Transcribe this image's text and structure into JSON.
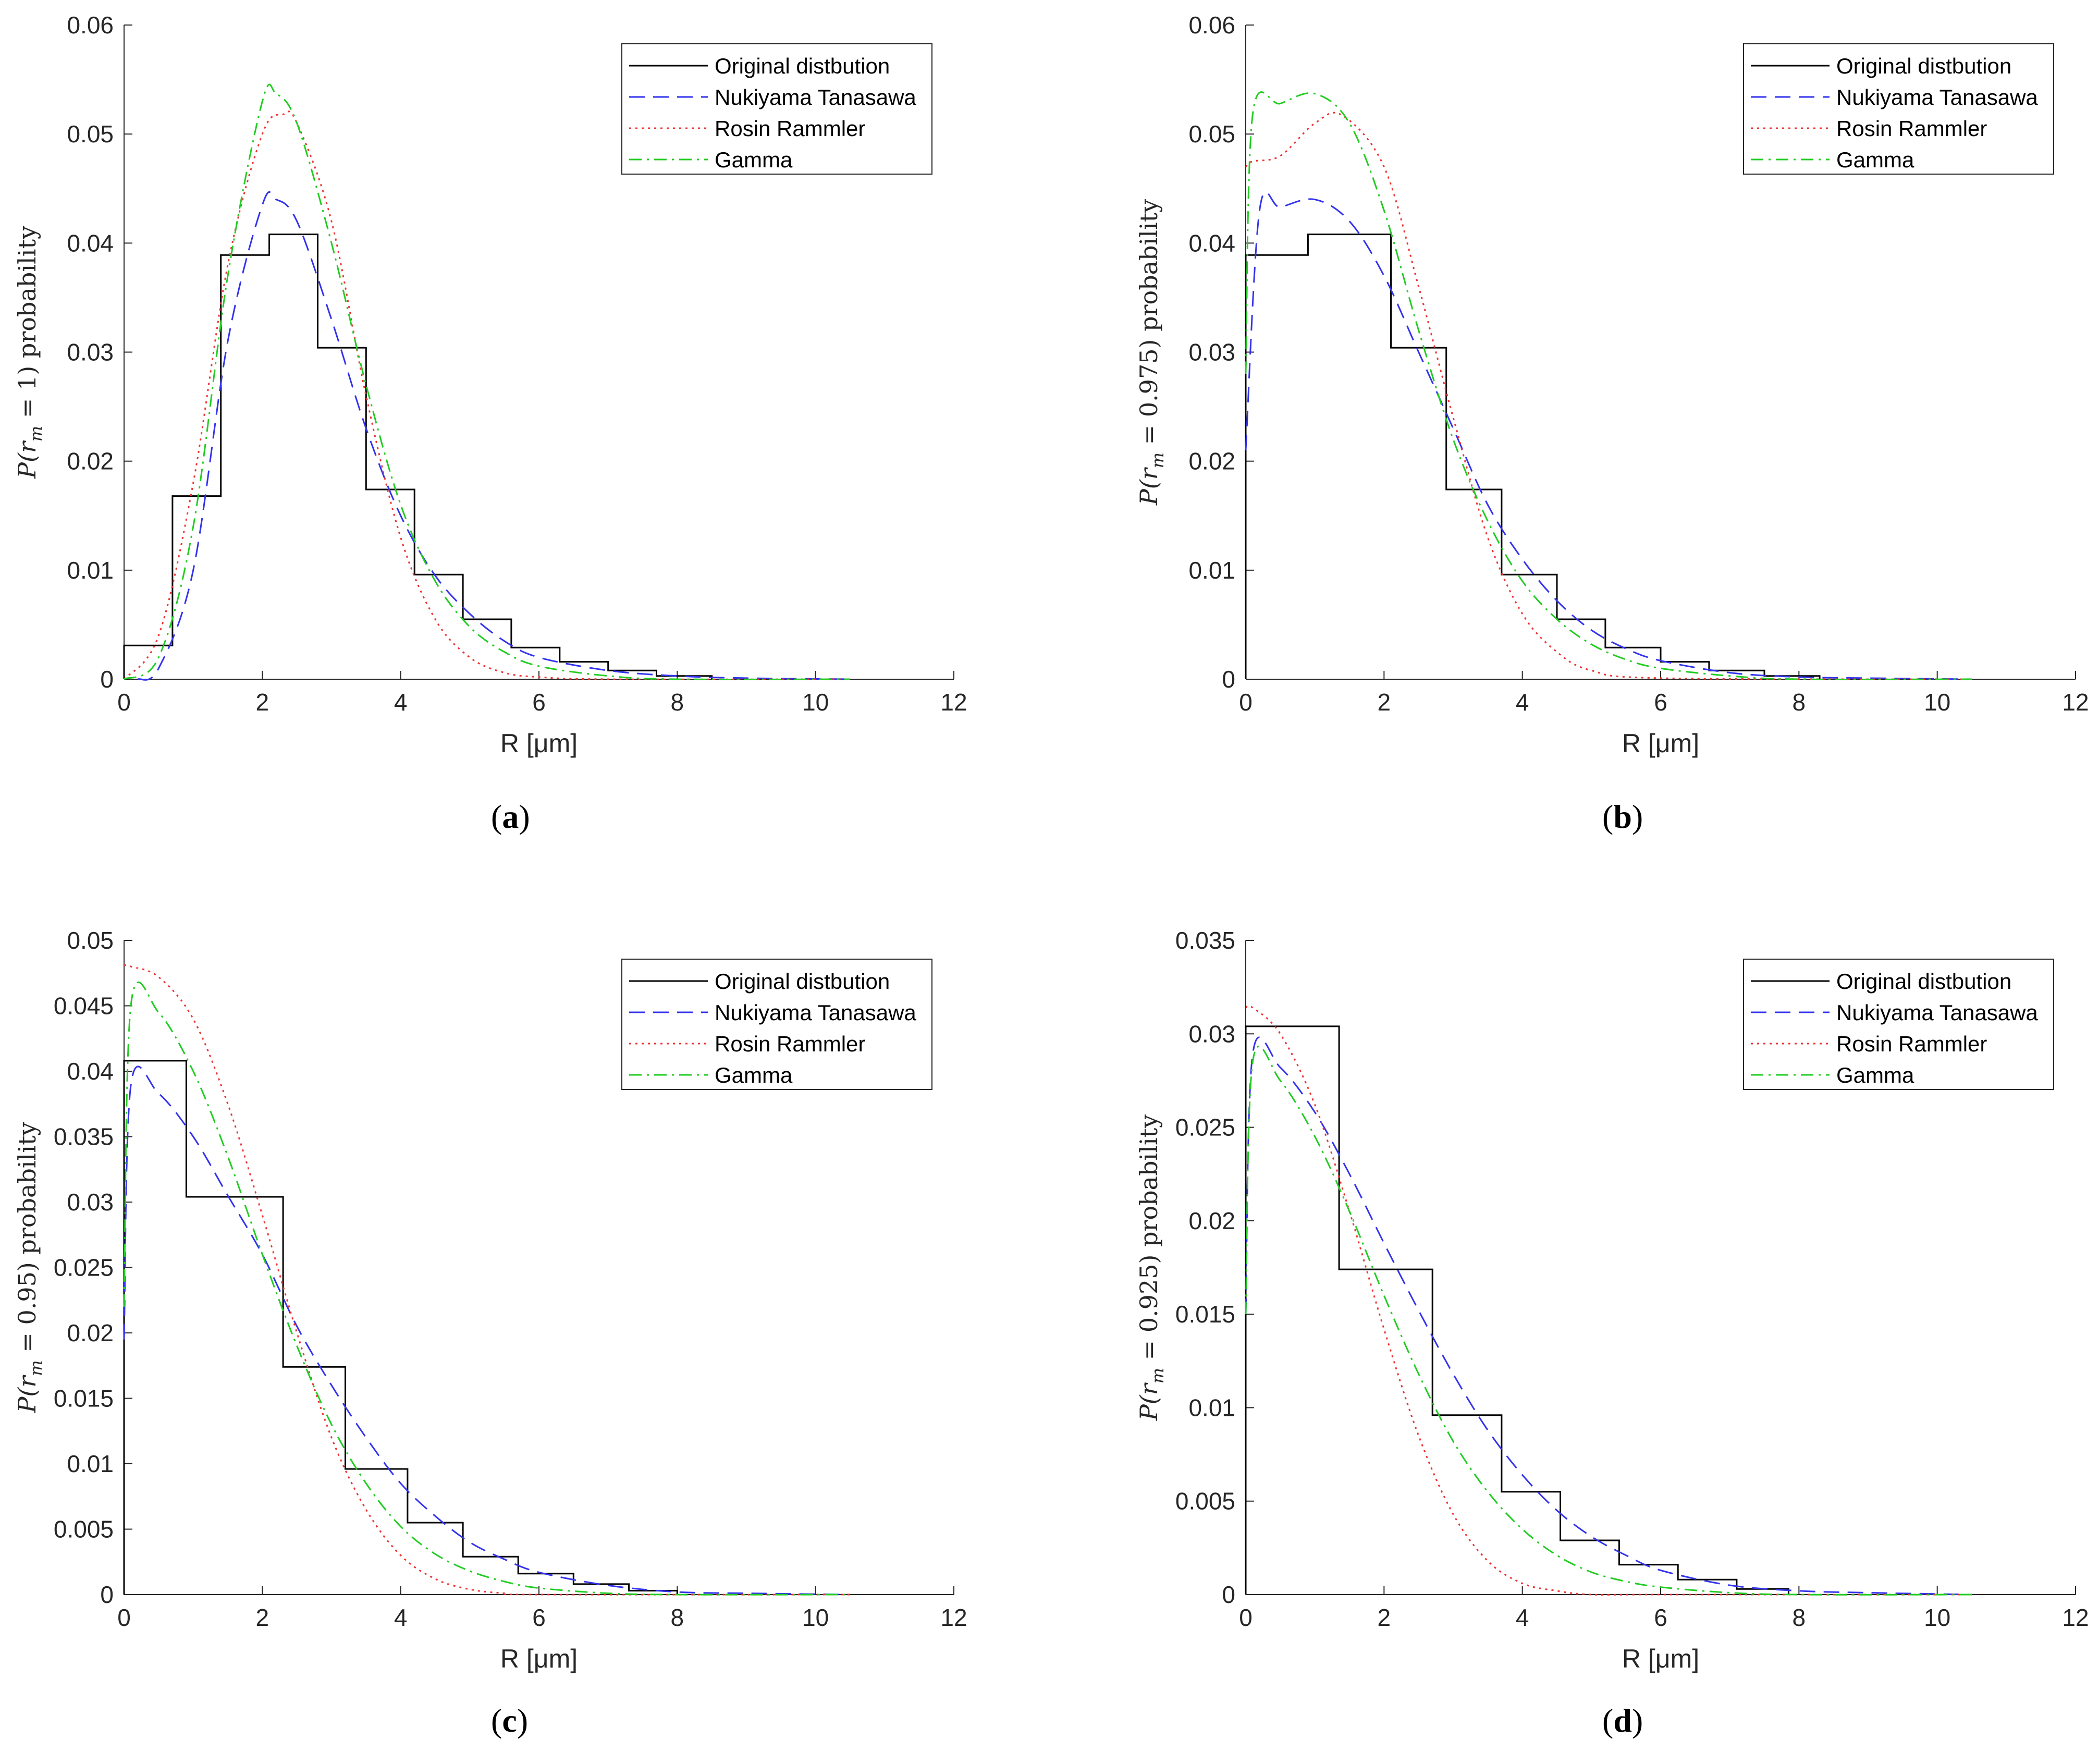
{
  "figure": {
    "legend": [
      "Original distbution",
      "Nukiyama Tanasawa",
      "Rosin Rammler",
      "Gamma"
    ],
    "series_colors": {
      "Original distbution": "#000000",
      "Nukiyama Tanasawa": "#3333ee",
      "Rosin Rammler": "#ee3333",
      "Gamma": "#22cc22"
    },
    "xlabel": "R [μm]"
  },
  "chart_data": [
    {
      "type": "line",
      "caption": "(a)",
      "caption_letter": "a",
      "ylabel": "P(r_m = 1) probability",
      "ylabel_display": "P(r",
      "ylabel_sub": "m",
      "ylabel_rest": " = 1) probability",
      "xlim": [
        0,
        12
      ],
      "ylim": [
        0,
        0.06
      ],
      "xticks": [
        "0",
        "2",
        "4",
        "6",
        "8",
        "10",
        "12"
      ],
      "yticks": [
        "0",
        "0.01",
        "0.02",
        "0.03",
        "0.04",
        "0.05",
        "0.06"
      ],
      "series": [
        {
          "name": "Original distbution",
          "style": "step",
          "edges": [
            0,
            0.7,
            1.4,
            2.1,
            2.8,
            3.5,
            4.2,
            4.9,
            5.6,
            6.3,
            7.0,
            7.7,
            8.5
          ],
          "values": [
            0.0031,
            0.0168,
            0.0389,
            0.0408,
            0.0304,
            0.0174,
            0.0096,
            0.0055,
            0.0029,
            0.0016,
            0.0008,
            0.0003
          ]
        },
        {
          "name": "Nukiyama Tanasawa",
          "style": "dashed",
          "x": [
            0.2,
            0.5,
            1.0,
            1.5,
            2.0,
            2.2,
            2.5,
            3.0,
            3.5,
            4.0,
            4.5,
            5.0,
            5.5,
            6.0,
            7.0,
            8.0,
            9.0,
            10.5
          ],
          "values": [
            0.0,
            0.001,
            0.01,
            0.031,
            0.0435,
            0.044,
            0.042,
            0.033,
            0.023,
            0.015,
            0.0095,
            0.006,
            0.0035,
            0.002,
            0.0008,
            0.0003,
            0.0001,
            0.0
          ]
        },
        {
          "name": "Rosin Rammler",
          "style": "dotted",
          "x": [
            0.0,
            0.5,
            1.0,
            1.5,
            2.0,
            2.3,
            2.5,
            3.0,
            3.5,
            4.0,
            4.5,
            5.0,
            5.5,
            6.0,
            7.0,
            10.5
          ],
          "values": [
            0.0,
            0.004,
            0.018,
            0.038,
            0.05,
            0.0518,
            0.051,
            0.042,
            0.026,
            0.013,
            0.0055,
            0.002,
            0.0006,
            0.0002,
            0.0,
            0.0
          ]
        },
        {
          "name": "Gamma",
          "style": "dashdot",
          "x": [
            0.0,
            0.5,
            1.0,
            1.5,
            2.0,
            2.2,
            2.5,
            3.0,
            3.5,
            4.0,
            4.5,
            5.0,
            5.5,
            6.0,
            7.0,
            8.0,
            10.5
          ],
          "values": [
            0.0,
            0.002,
            0.014,
            0.037,
            0.053,
            0.0537,
            0.051,
            0.04,
            0.027,
            0.016,
            0.009,
            0.0048,
            0.0025,
            0.0012,
            0.0003,
            0.0,
            0.0
          ]
        }
      ]
    },
    {
      "type": "line",
      "caption": "(b)",
      "caption_letter": "b",
      "ylabel": "P(r_m = 0.975) probability",
      "ylabel_display": "P(r",
      "ylabel_sub": "m",
      "ylabel_rest": " = 0.975) probability",
      "xlim": [
        0,
        12
      ],
      "ylim": [
        0,
        0.06
      ],
      "xticks": [
        "0",
        "2",
        "4",
        "6",
        "8",
        "10",
        "12"
      ],
      "yticks": [
        "0",
        "0.01",
        "0.02",
        "0.03",
        "0.04",
        "0.05",
        "0.06"
      ],
      "series": [
        {
          "name": "Original distbution",
          "style": "step",
          "edges": [
            0,
            0.9,
            2.1,
            2.9,
            3.7,
            4.5,
            5.2,
            6.0,
            6.7,
            7.5,
            8.3
          ],
          "values": [
            0.0389,
            0.0408,
            0.0304,
            0.0174,
            0.0096,
            0.0055,
            0.0029,
            0.0016,
            0.0008,
            0.0003
          ]
        },
        {
          "name": "Nukiyama Tanasawa",
          "style": "dashed",
          "x": [
            0.0,
            0.2,
            0.5,
            1.0,
            1.5,
            2.0,
            2.5,
            3.0,
            3.5,
            4.0,
            4.5,
            5.0,
            5.5,
            6.0,
            7.0,
            8.0,
            9.0,
            10.5
          ],
          "values": [
            0.021,
            0.043,
            0.0433,
            0.044,
            0.042,
            0.037,
            0.03,
            0.023,
            0.016,
            0.011,
            0.0072,
            0.0045,
            0.0028,
            0.0017,
            0.0006,
            0.0002,
            0.0001,
            0.0
          ]
        },
        {
          "name": "Rosin Rammler",
          "style": "dotted",
          "x": [
            0.0,
            0.1,
            0.5,
            1.0,
            1.4,
            2.0,
            2.5,
            3.0,
            3.5,
            4.0,
            4.5,
            5.0,
            6.0,
            10.5
          ],
          "values": [
            0.047,
            0.0475,
            0.048,
            0.051,
            0.0517,
            0.047,
            0.036,
            0.024,
            0.013,
            0.006,
            0.0025,
            0.0008,
            0.0001,
            0.0
          ]
        },
        {
          "name": "Gamma",
          "style": "dashdot",
          "x": [
            0.0,
            0.1,
            0.5,
            1.0,
            1.5,
            2.0,
            2.5,
            3.0,
            3.5,
            4.0,
            4.5,
            5.0,
            5.5,
            6.0,
            7.0,
            8.0,
            10.5
          ],
          "values": [
            0.028,
            0.0518,
            0.0528,
            0.0537,
            0.051,
            0.043,
            0.032,
            0.022,
            0.0145,
            0.009,
            0.0055,
            0.0032,
            0.0018,
            0.001,
            0.0003,
            0.0,
            0.0
          ]
        }
      ]
    },
    {
      "type": "line",
      "caption": "(c)",
      "caption_letter": "c",
      "ylabel": "P(r_m = 0.95) probability",
      "ylabel_display": "P(r",
      "ylabel_sub": "m",
      "ylabel_rest": " = 0.95) probability",
      "xlim": [
        0,
        12
      ],
      "ylim": [
        0,
        0.05
      ],
      "xticks": [
        "0",
        "2",
        "4",
        "6",
        "8",
        "10",
        "12"
      ],
      "yticks": [
        "0",
        "0.005",
        "0.01",
        "0.015",
        "0.02",
        "0.025",
        "0.03",
        "0.035",
        "0.04",
        "0.045",
        "0.05"
      ],
      "series": [
        {
          "name": "Original distbution",
          "style": "step",
          "edges": [
            0,
            0.9,
            2.3,
            3.2,
            4.1,
            4.9,
            5.7,
            6.5,
            7.3,
            8.0
          ],
          "values": [
            0.0408,
            0.0304,
            0.0174,
            0.0096,
            0.0055,
            0.0029,
            0.0016,
            0.0008,
            0.0003
          ]
        },
        {
          "name": "Nukiyama Tanasawa",
          "style": "dashed",
          "x": [
            0.0,
            0.1,
            0.5,
            1.0,
            1.5,
            2.0,
            2.5,
            3.0,
            3.5,
            4.0,
            4.5,
            5.0,
            5.5,
            6.0,
            7.0,
            8.0,
            9.0,
            10.5
          ],
          "values": [
            0.0195,
            0.039,
            0.0383,
            0.035,
            0.0305,
            0.026,
            0.0205,
            0.016,
            0.012,
            0.0085,
            0.006,
            0.004,
            0.0027,
            0.0017,
            0.0007,
            0.0002,
            0.0001,
            0.0
          ]
        },
        {
          "name": "Rosin Rammler",
          "style": "dotted",
          "x": [
            0.0,
            0.1,
            0.5,
            1.0,
            1.5,
            2.0,
            2.5,
            3.0,
            3.5,
            4.0,
            4.5,
            5.0,
            5.5,
            6.0,
            10.5
          ],
          "values": [
            0.0481,
            0.048,
            0.0472,
            0.044,
            0.0375,
            0.029,
            0.02,
            0.012,
            0.0065,
            0.003,
            0.0012,
            0.0004,
            0.0001,
            0.0,
            0.0
          ]
        },
        {
          "name": "Gamma",
          "style": "dashdot",
          "x": [
            0.0,
            0.1,
            0.5,
            1.0,
            1.5,
            2.0,
            2.5,
            3.0,
            3.5,
            4.0,
            4.5,
            5.0,
            5.5,
            6.0,
            7.0,
            8.0,
            10.5
          ],
          "values": [
            0.022,
            0.0451,
            0.0445,
            0.04,
            0.0335,
            0.026,
            0.019,
            0.013,
            0.0085,
            0.0052,
            0.0031,
            0.0018,
            0.001,
            0.0005,
            0.0001,
            0.0,
            0.0
          ]
        }
      ]
    },
    {
      "type": "line",
      "caption": "(d)",
      "caption_letter": "d",
      "ylabel": "P(r_m = 0.925) probability",
      "ylabel_display": "P(r",
      "ylabel_sub": "m",
      "ylabel_rest": " = 0.925) probability",
      "xlim": [
        0,
        12
      ],
      "ylim": [
        0,
        0.035
      ],
      "xticks": [
        "0",
        "2",
        "4",
        "6",
        "8",
        "10",
        "12"
      ],
      "yticks": [
        "0",
        "0.005",
        "0.01",
        "0.015",
        "0.02",
        "0.025",
        "0.03",
        "0.035"
      ],
      "series": [
        {
          "name": "Original distbution",
          "style": "step",
          "edges": [
            0,
            1.35,
            2.7,
            3.7,
            4.55,
            5.4,
            6.25,
            7.1,
            7.85
          ],
          "values": [
            0.0304,
            0.0174,
            0.0096,
            0.0055,
            0.0029,
            0.0016,
            0.0008,
            0.0003
          ]
        },
        {
          "name": "Nukiyama Tanasawa",
          "style": "dashed",
          "x": [
            0.0,
            0.1,
            0.5,
            1.0,
            1.5,
            2.0,
            2.5,
            3.0,
            3.5,
            4.0,
            4.5,
            5.0,
            5.5,
            6.0,
            7.0,
            8.0,
            9.0,
            10.5
          ],
          "values": [
            0.015,
            0.0289,
            0.0282,
            0.0258,
            0.0225,
            0.0188,
            0.0152,
            0.0118,
            0.0088,
            0.0064,
            0.0045,
            0.0031,
            0.0021,
            0.0013,
            0.0005,
            0.0002,
            0.0001,
            0.0
          ]
        },
        {
          "name": "Rosin Rammler",
          "style": "dotted",
          "x": [
            0.0,
            0.1,
            0.5,
            1.0,
            1.5,
            2.0,
            2.5,
            3.0,
            3.5,
            4.0,
            4.5,
            5.0,
            6.0,
            10.5
          ],
          "values": [
            0.0314,
            0.0314,
            0.03,
            0.0262,
            0.0205,
            0.0142,
            0.0085,
            0.0043,
            0.0018,
            0.0006,
            0.0002,
            0.0,
            0.0,
            0.0
          ]
        },
        {
          "name": "Gamma",
          "style": "dashdot",
          "x": [
            0.0,
            0.1,
            0.5,
            1.0,
            1.5,
            2.0,
            2.5,
            3.0,
            3.5,
            4.0,
            4.5,
            5.0,
            5.5,
            6.0,
            7.0,
            8.0,
            10.5
          ],
          "values": [
            0.015,
            0.0285,
            0.0275,
            0.0245,
            0.0205,
            0.016,
            0.0118,
            0.0082,
            0.0055,
            0.0035,
            0.0021,
            0.0012,
            0.0007,
            0.0004,
            0.0001,
            0.0,
            0.0
          ]
        }
      ]
    }
  ]
}
